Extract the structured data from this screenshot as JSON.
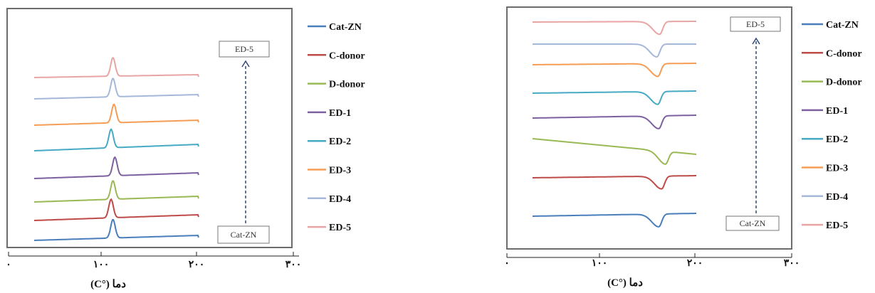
{
  "chart_data": [
    {
      "type": "line",
      "panel": "left",
      "xlabel": "دما (°C)",
      "ticks": [
        "۰",
        "۱۰۰",
        "۲۰۰",
        "۳۰۰"
      ],
      "xlim": [
        0,
        300
      ],
      "legend_position": "right",
      "annotations": {
        "top_box": "ED-5",
        "bottom_box": "Cat-ZN"
      },
      "series": [
        {
          "name": "Cat-ZN",
          "color": "#4a7ebb",
          "peak_x": 110,
          "peak_type": "exotherm"
        },
        {
          "name": "C-donor",
          "color": "#be4b48",
          "peak_x": 108,
          "peak_type": "exotherm"
        },
        {
          "name": "D-donor",
          "color": "#98b954",
          "peak_x": 110,
          "peak_type": "exotherm"
        },
        {
          "name": "ED-1",
          "color": "#7d60a0",
          "peak_x": 112,
          "peak_type": "exotherm"
        },
        {
          "name": "ED-2",
          "color": "#46aac4",
          "peak_x": 108,
          "peak_type": "exotherm"
        },
        {
          "name": "ED-3",
          "color": "#f59d56",
          "peak_x": 111,
          "peak_type": "exotherm"
        },
        {
          "name": "ED-4",
          "color": "#a5b8d9",
          "peak_x": 110,
          "peak_type": "exotherm"
        },
        {
          "name": "ED-5",
          "color": "#e8a5a3",
          "peak_x": 110,
          "peak_type": "exotherm"
        }
      ]
    },
    {
      "type": "line",
      "panel": "right",
      "xlabel": "دما (°C)",
      "ticks": [
        "۰",
        "۱۰۰",
        "۲۰۰",
        "۳۰۰"
      ],
      "xlim": [
        0,
        300
      ],
      "legend_position": "right",
      "annotations": {
        "top_box": "ED-5",
        "bottom_box": "Cat-ZN"
      },
      "series": [
        {
          "name": "Cat-ZN",
          "color": "#4a7ebb",
          "peak_x": 160,
          "peak_type": "endotherm"
        },
        {
          "name": "C-donor",
          "color": "#be4b48",
          "peak_x": 163,
          "peak_type": "endotherm"
        },
        {
          "name": "D-donor",
          "color": "#98b954",
          "peak_x": 167,
          "peak_type": "endotherm"
        },
        {
          "name": "ED-1",
          "color": "#7d60a0",
          "peak_x": 160,
          "peak_type": "endotherm"
        },
        {
          "name": "ED-2",
          "color": "#46aac4",
          "peak_x": 159,
          "peak_type": "endotherm"
        },
        {
          "name": "ED-3",
          "color": "#f59d56",
          "peak_x": 159,
          "peak_type": "endotherm"
        },
        {
          "name": "ED-4",
          "color": "#a5b8d9",
          "peak_x": 158,
          "peak_type": "endotherm"
        },
        {
          "name": "ED-5",
          "color": "#e8a5a3",
          "peak_x": 161,
          "peak_type": "endotherm"
        }
      ]
    }
  ]
}
